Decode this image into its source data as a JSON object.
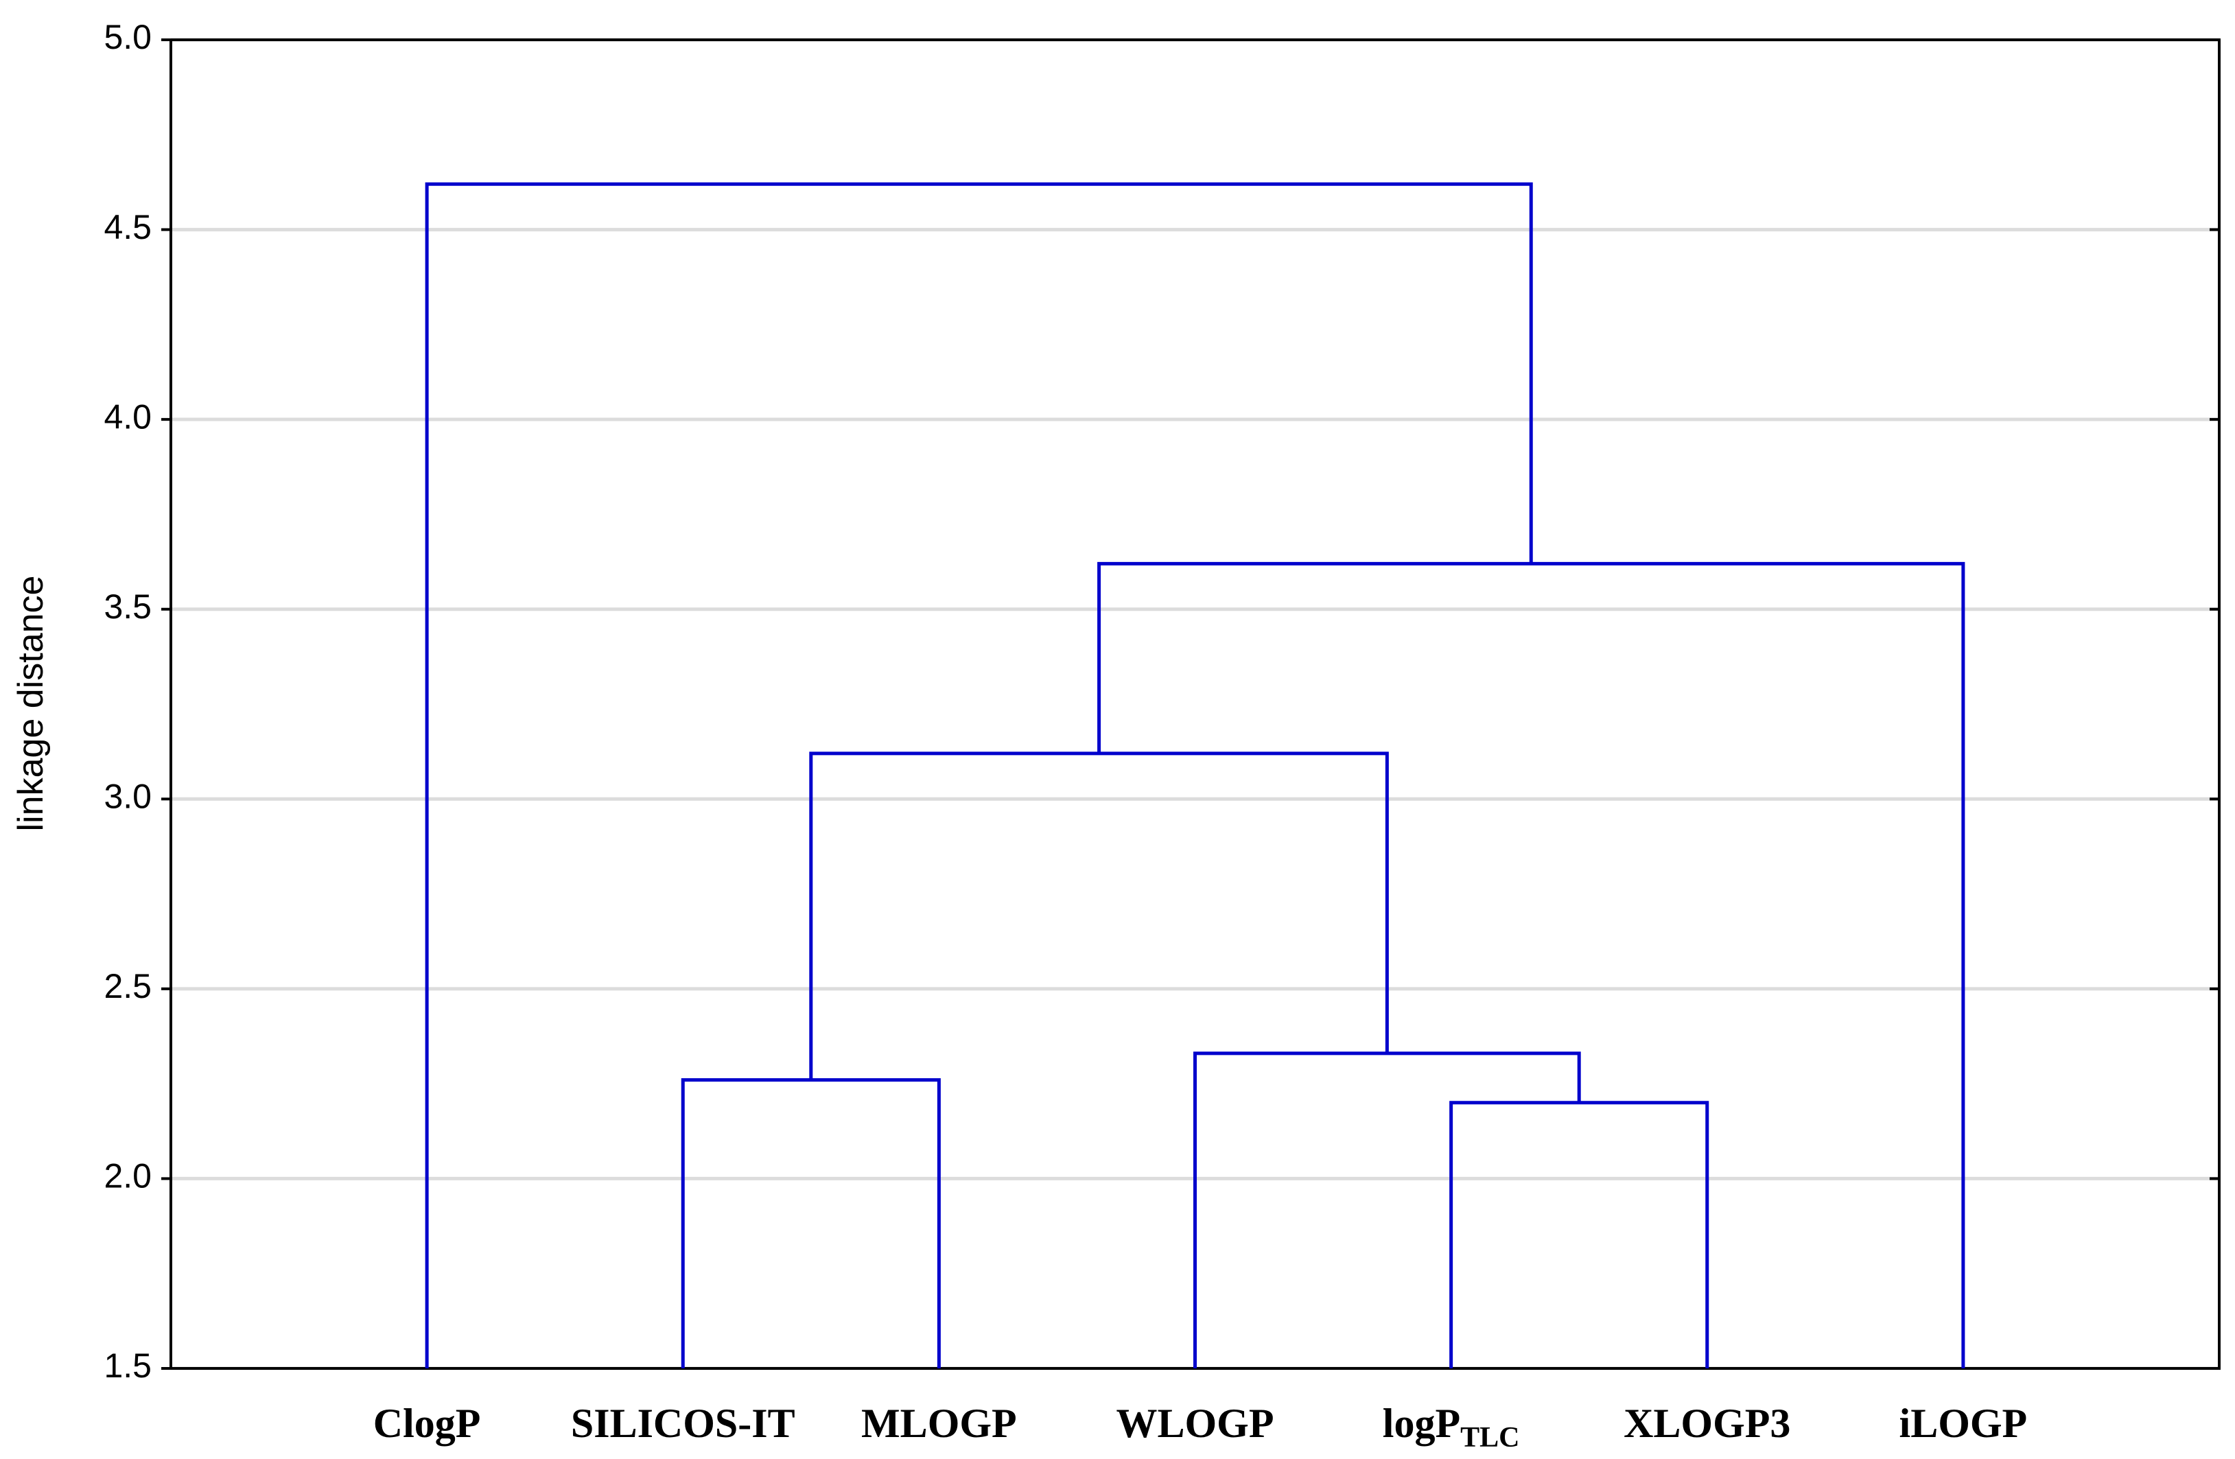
{
  "chart_data": {
    "type": "dendrogram",
    "y_label": "linkage distance",
    "categories": [
      "ClogP",
      "SILICOS-IT",
      "MLOGP",
      "WLOGP",
      [
        "logP",
        "TLC"
      ],
      "XLOGP3",
      "iLOGP"
    ],
    "merges": [
      {
        "children": [
          4,
          5
        ],
        "height": 2.2
      },
      {
        "children": [
          3,
          7
        ],
        "height": 2.33
      },
      {
        "children": [
          1,
          2
        ],
        "height": 2.26
      },
      {
        "children": [
          9,
          8
        ],
        "height": 3.12
      },
      {
        "children": [
          10,
          6
        ],
        "height": 3.62
      },
      {
        "children": [
          0,
          11
        ],
        "height": 4.62
      }
    ],
    "color": "#0000cc",
    "ylim": [
      1.5,
      5.0
    ],
    "yticks": [
      {
        "value": 1.5,
        "label": "1.5"
      },
      {
        "value": 2.0,
        "label": "2.0"
      },
      {
        "value": 2.5,
        "label": "2.5"
      },
      {
        "value": 3.0,
        "label": "3.0"
      },
      {
        "value": 3.5,
        "label": "3.5"
      },
      {
        "value": 4.0,
        "label": "4.0"
      },
      {
        "value": 4.5,
        "label": "4.5"
      },
      {
        "value": 5.0,
        "label": "5.0"
      }
    ],
    "grid": true
  }
}
